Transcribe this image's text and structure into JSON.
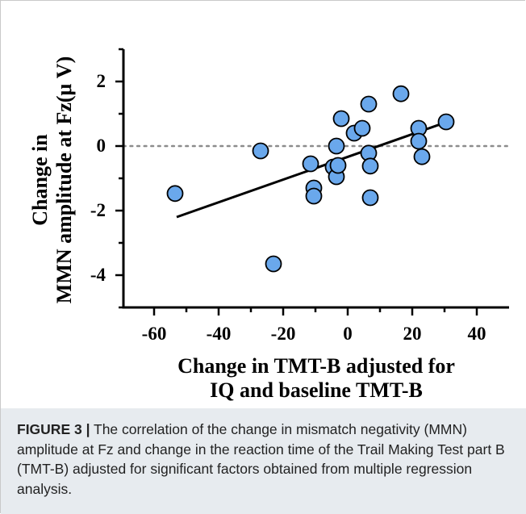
{
  "chart_data": {
    "type": "scatter",
    "xlabel": [
      "Change in TMT-B adjusted for",
      "IQ and baseline TMT-B"
    ],
    "ylabel": [
      "Change in",
      "MMN amplitude at Fz(μ V)"
    ],
    "xlim": [
      -70,
      50
    ],
    "ylim": [
      -5,
      3
    ],
    "xticks": [
      "-60",
      "-40",
      "-20",
      "0",
      "20",
      "40"
    ],
    "yticks": [
      "2",
      "0",
      "-2",
      "-4"
    ],
    "grid": false,
    "reference_line_y": 0,
    "fit_line": {
      "x": [
        -53,
        30
      ],
      "y": [
        -2.2,
        0.72
      ]
    },
    "points": [
      {
        "x": -53.5,
        "y": -1.47
      },
      {
        "x": -27,
        "y": -0.15
      },
      {
        "x": -23,
        "y": -3.65
      },
      {
        "x": -11.5,
        "y": -0.55
      },
      {
        "x": -10.5,
        "y": -1.3
      },
      {
        "x": -10.5,
        "y": -1.55
      },
      {
        "x": -4.5,
        "y": -0.65
      },
      {
        "x": -3.5,
        "y": -0.95
      },
      {
        "x": -3.5,
        "y": 0.0
      },
      {
        "x": -3,
        "y": -0.6
      },
      {
        "x": -2,
        "y": 0.85
      },
      {
        "x": 2,
        "y": 0.4
      },
      {
        "x": 4.5,
        "y": 0.55
      },
      {
        "x": 6.5,
        "y": 1.3
      },
      {
        "x": 6.5,
        "y": -0.22
      },
      {
        "x": 7,
        "y": -0.62
      },
      {
        "x": 7,
        "y": -1.6
      },
      {
        "x": 16.5,
        "y": 1.62
      },
      {
        "x": 22,
        "y": 0.55
      },
      {
        "x": 22,
        "y": 0.15
      },
      {
        "x": 23,
        "y": -0.33
      },
      {
        "x": 30.5,
        "y": 0.75
      }
    ],
    "marker_color": "#6aa8ec",
    "marker_edge": "#000000"
  },
  "caption": {
    "label": "FIGURE 3 |",
    "text": " The correlation of the change in mismatch negativity (MMN) amplitude at Fz and change in the reaction time of the Trail Making Test part B (TMT-B) adjusted for significant factors obtained from multiple regression analysis."
  }
}
